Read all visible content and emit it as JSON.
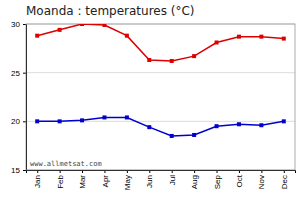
{
  "chart_data": {
    "type": "line",
    "title": "Moanda : temperatures (°C)",
    "categories": [
      "Jan",
      "Feb",
      "Mar",
      "Apr",
      "May",
      "Jun",
      "Jul",
      "Aug",
      "Sep",
      "Oct",
      "Nov",
      "Dec"
    ],
    "series": [
      {
        "color": "#dd0000",
        "marker": "square",
        "values": [
          28.8,
          29.4,
          30.0,
          29.9,
          28.8,
          26.3,
          26.2,
          26.7,
          28.1,
          28.7,
          28.7,
          28.5
        ]
      },
      {
        "color": "#0000cc",
        "marker": "square",
        "values": [
          20.0,
          20.0,
          20.1,
          20.4,
          20.4,
          19.4,
          18.5,
          18.6,
          19.5,
          19.7,
          19.6,
          20.0
        ]
      }
    ],
    "ylim": [
      15,
      30
    ],
    "yticks": [
      15,
      20,
      25,
      30
    ],
    "grid": true,
    "annotations": [
      "www.allmetsat.com"
    ]
  }
}
